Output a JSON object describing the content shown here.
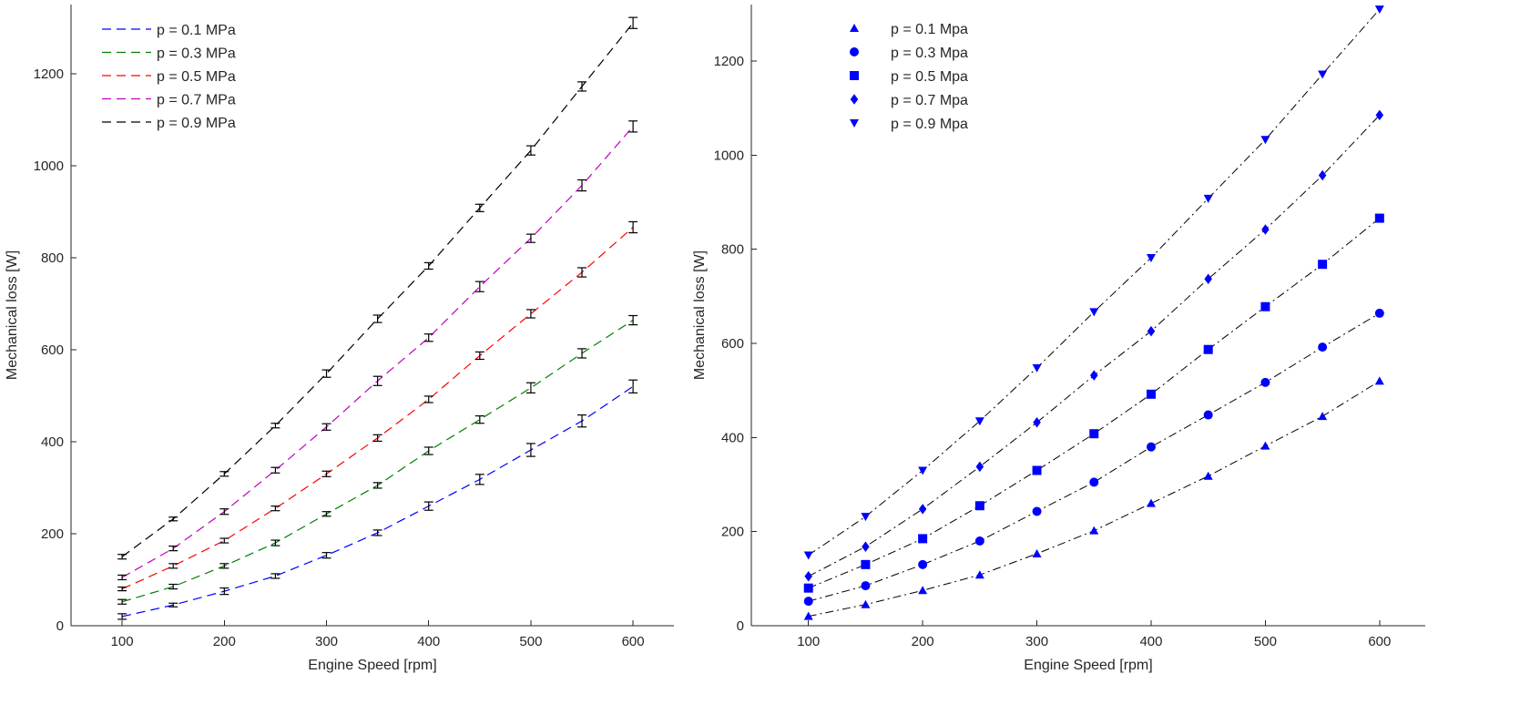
{
  "chart_data": [
    {
      "type": "line",
      "title": "",
      "xlabel": "Engine Speed [rpm]",
      "ylabel": "Mechanical loss [W]",
      "xlim": [
        50,
        640
      ],
      "ylim": [
        0,
        1350
      ],
      "xticks": [
        "100",
        "200",
        "300",
        "400",
        "500",
        "600"
      ],
      "yticks": [
        "0",
        "200",
        "400",
        "600",
        "800",
        "1000",
        "1200"
      ],
      "grid": false,
      "legend_position": "top-left",
      "line_style": "dashed",
      "error_bars": true,
      "x": [
        100,
        150,
        200,
        250,
        300,
        350,
        400,
        450,
        500,
        550,
        600
      ],
      "series": [
        {
          "name": "p = 0.1 MPa",
          "color": "#0000ff",
          "values": [
            20,
            45,
            75,
            108,
            153,
            202,
            260,
            318,
            382,
            445,
            520
          ],
          "errors": [
            6,
            4,
            7,
            5,
            6,
            6,
            9,
            11,
            14,
            13,
            14
          ]
        },
        {
          "name": "p = 0.3 MPa",
          "color": "#008000",
          "values": [
            52,
            85,
            130,
            180,
            243,
            305,
            380,
            448,
            517,
            592,
            664
          ],
          "errors": [
            5,
            5,
            5,
            6,
            5,
            6,
            8,
            8,
            11,
            10,
            10
          ]
        },
        {
          "name": "p = 0.5 MPa",
          "color": "#ff0000",
          "values": [
            80,
            130,
            185,
            255,
            330,
            408,
            492,
            587,
            678,
            768,
            866
          ],
          "errors": [
            4,
            5,
            5,
            5,
            6,
            7,
            7,
            8,
            9,
            10,
            12
          ]
        },
        {
          "name": "p = 0.7 MPa",
          "color": "#bf00bf",
          "values": [
            105,
            168,
            248,
            338,
            432,
            532,
            626,
            737,
            842,
            957,
            1085
          ],
          "errors": [
            5,
            5,
            6,
            6,
            7,
            10,
            8,
            11,
            9,
            12,
            12
          ]
        },
        {
          "name": "p = 0.9 MPa",
          "color": "#000000",
          "values": [
            150,
            232,
            330,
            435,
            548,
            667,
            782,
            908,
            1033,
            1172,
            1310
          ],
          "errors": [
            5,
            4,
            5,
            5,
            8,
            8,
            7,
            8,
            10,
            10,
            12
          ]
        }
      ]
    },
    {
      "type": "scatter",
      "title": "",
      "xlabel": "Engine Speed [rpm]",
      "ylabel": "Mechanical loss [W]",
      "xlim": [
        50,
        640
      ],
      "ylim": [
        0,
        1320
      ],
      "xticks": [
        "100",
        "200",
        "300",
        "400",
        "500",
        "600"
      ],
      "yticks": [
        "0",
        "200",
        "400",
        "600",
        "800",
        "1000",
        "1200"
      ],
      "grid": false,
      "legend_position": "top-left",
      "marker_color": "#0000ff",
      "fit_line_style": "dash-dot",
      "x": [
        100,
        150,
        200,
        250,
        300,
        350,
        400,
        450,
        500,
        550,
        600
      ],
      "series": [
        {
          "name": "p = 0.1 Mpa",
          "marker": "triangle-up",
          "values": [
            20,
            45,
            75,
            108,
            153,
            202,
            260,
            318,
            382,
            445,
            520
          ]
        },
        {
          "name": "p = 0.3 Mpa",
          "marker": "circle",
          "values": [
            52,
            85,
            130,
            180,
            243,
            305,
            380,
            448,
            517,
            592,
            664
          ]
        },
        {
          "name": "p = 0.5 Mpa",
          "marker": "square",
          "values": [
            80,
            130,
            185,
            255,
            330,
            408,
            492,
            587,
            678,
            768,
            866
          ]
        },
        {
          "name": "p = 0.7 Mpa",
          "marker": "diamond",
          "values": [
            105,
            168,
            248,
            338,
            432,
            532,
            626,
            737,
            842,
            957,
            1085
          ]
        },
        {
          "name": "p = 0.9 Mpa",
          "marker": "triangle-down",
          "values": [
            150,
            232,
            330,
            435,
            548,
            667,
            782,
            908,
            1033,
            1172,
            1310
          ]
        }
      ]
    }
  ]
}
